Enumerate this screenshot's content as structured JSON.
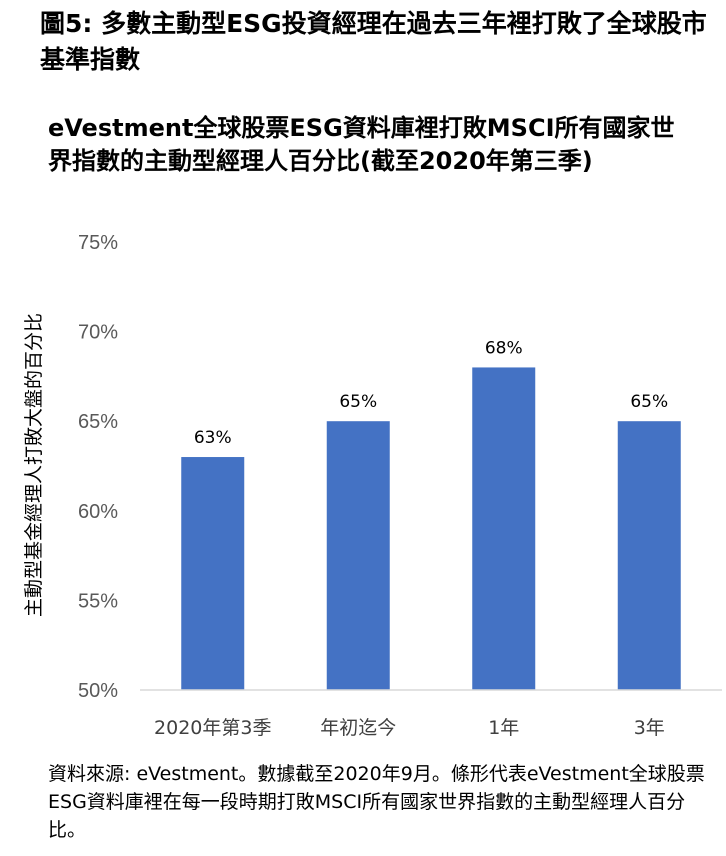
{
  "figure_title": "圖5: 多數主動型ESG投資經理在過去三年裡打敗了全球股市基準指數",
  "source_note": "資料來源: eVestment。數據截至2020年9月。條形代表eVestment全球股票ESG資料庫裡在每一段時期打敗MSCI所有國家世界指數的主動型經理人百分比。",
  "chart_data": {
    "type": "bar",
    "title": "eVestment全球股票ESG資料庫裡打敗MSCI所有國家世界指數的主動型經理人百分比(截至2020年第三季)",
    "xlabel": "",
    "ylabel": "主動型基金經理人打敗大盤的百分比",
    "categories": [
      "2020年第3季",
      "年初迄今",
      "1年",
      "3年"
    ],
    "values": [
      63,
      65,
      68,
      65
    ],
    "value_labels": [
      "63%",
      "65%",
      "68%",
      "65%"
    ],
    "ylim": [
      50,
      75
    ],
    "yticks": [
      50,
      55,
      60,
      65,
      70,
      75
    ],
    "ytick_labels": [
      "50%",
      "55%",
      "60%",
      "65%",
      "70%",
      "75%"
    ],
    "bar_color": "#4472C4",
    "grid": false,
    "legend": "none"
  }
}
